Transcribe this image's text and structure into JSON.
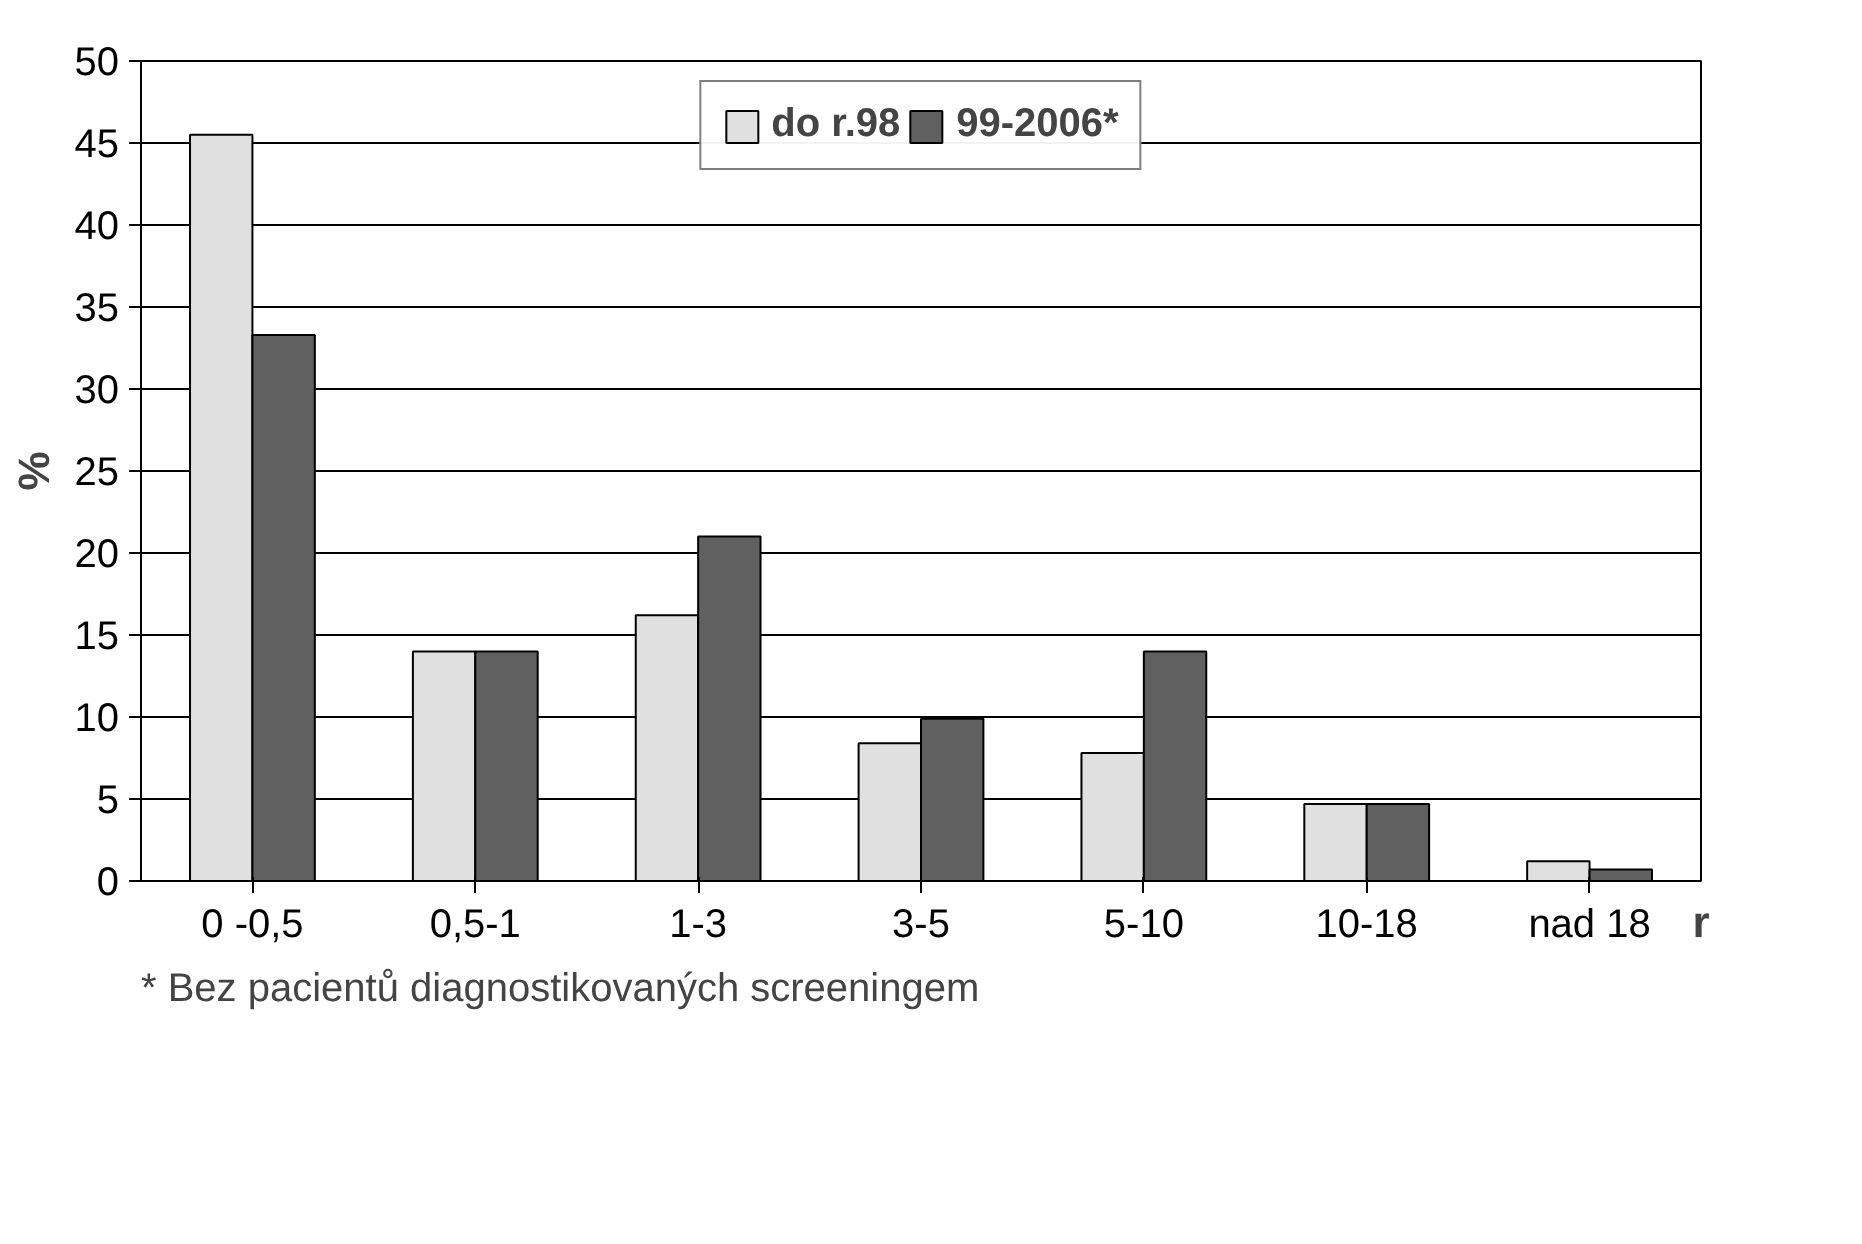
{
  "chart_data": {
    "type": "bar",
    "categories": [
      "0 -0,5",
      "0,5-1",
      "1-3",
      "3-5",
      "5-10",
      "10-18",
      "nad 18"
    ],
    "series": [
      {
        "name": "do r.98",
        "color": "#e0e0e0",
        "values": [
          45.5,
          14,
          16.2,
          8.4,
          7.8,
          4.7,
          1.2
        ]
      },
      {
        "name": "99-2006*",
        "color": "#606060",
        "values": [
          33.3,
          14,
          21,
          9.9,
          14,
          4.7,
          0.7
        ]
      }
    ],
    "ylabel": "%",
    "xlabel": "r",
    "ylim": [
      0,
      50
    ],
    "yticks": [
      0,
      5,
      10,
      15,
      20,
      25,
      30,
      35,
      40,
      45,
      50
    ],
    "grid": "y",
    "legend": "top",
    "annotations": [
      "* Bez pacientů diagnostikovaných screeningem"
    ]
  }
}
